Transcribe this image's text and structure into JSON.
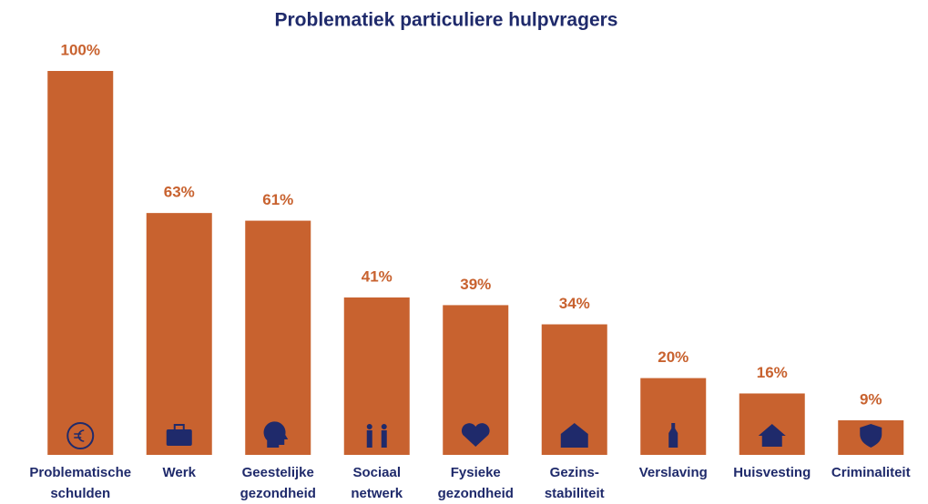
{
  "chart_data": {
    "type": "bar",
    "title": "Problematiek particuliere hulpvragers",
    "categories": [
      "Problematische\nschulden",
      "Werk",
      "Geestelijke\ngezondheid",
      "Sociaal\nnetwerk",
      "Fysieke\ngezondheid",
      "Gezins-\nstabiliteit",
      "Verslaving",
      "Huisvesting",
      "Criminaliteit"
    ],
    "values": [
      100,
      63,
      61,
      41,
      39,
      34,
      20,
      16,
      9
    ],
    "value_labels": [
      "100%",
      "63%",
      "61%",
      "41%",
      "39%",
      "34%",
      "20%",
      "16%",
      "9%"
    ],
    "color": "#c8622f",
    "ylim": [
      0,
      100
    ]
  }
}
